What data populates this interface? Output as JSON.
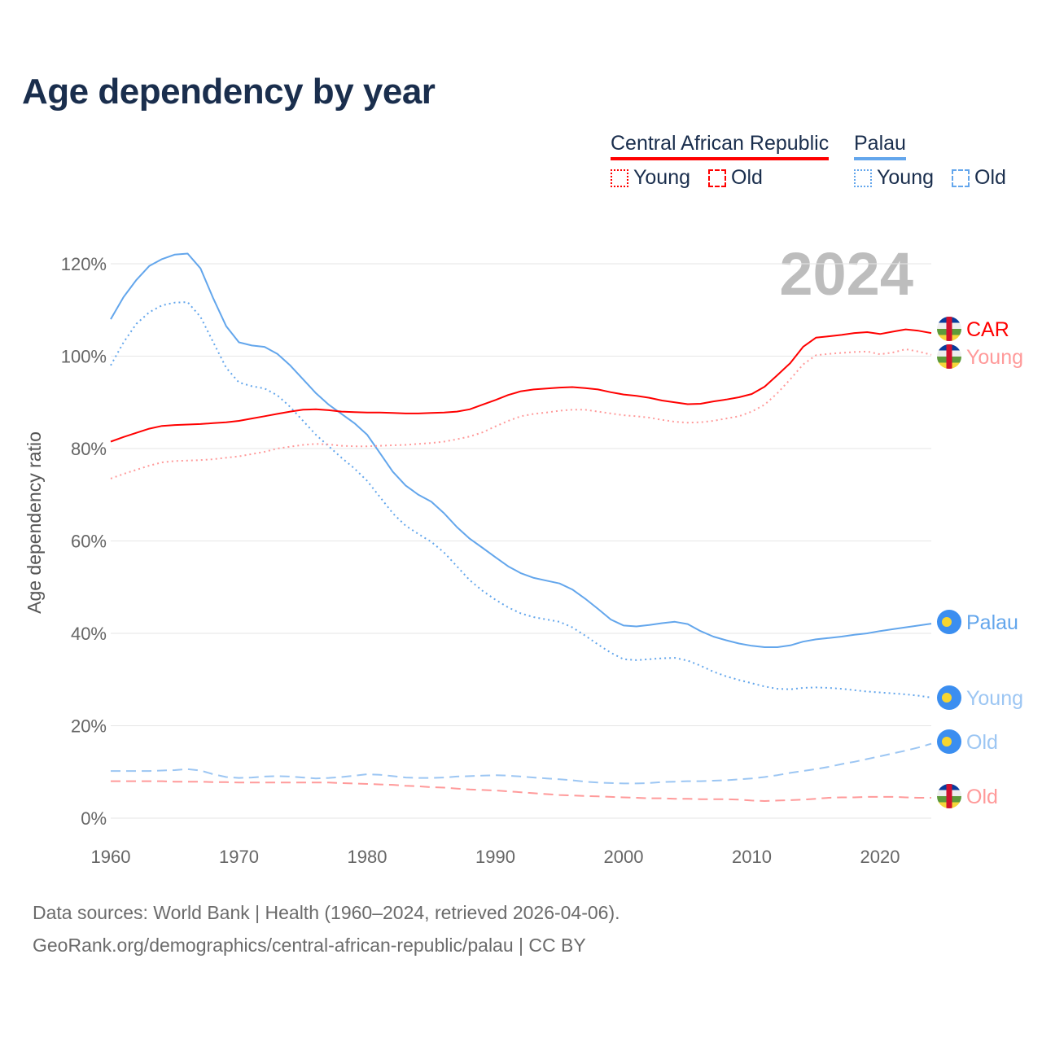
{
  "title": "Age dependency by year",
  "legend": {
    "countries": [
      {
        "name": "Central African Republic",
        "color": "#ff0000"
      },
      {
        "name": "Palau",
        "color": "#63a6ec"
      }
    ],
    "young_label": "Young",
    "old_label": "Old"
  },
  "year_watermark": "2024",
  "footer": {
    "line1": "Data sources: World Bank | Health (1960–2024, retrieved 2026-04-06).",
    "line2": "GeoRank.org/demographics/central-african-republic/palau | CC BY"
  },
  "end_labels": [
    "CAR",
    "Young",
    "Palau",
    "Young",
    "Old",
    "Old"
  ],
  "chart_data": {
    "type": "line",
    "title": "Age dependency by year",
    "xlabel": "",
    "ylabel": "Age dependency ratio",
    "xlim": [
      1960,
      2024
    ],
    "ylim": [
      0,
      120
    ],
    "x_ticks": [
      "1960",
      "1970",
      "1980",
      "1990",
      "2000",
      "2010",
      "2020"
    ],
    "y_ticks": [
      "0%",
      "20%",
      "40%",
      "60%",
      "80%",
      "100%",
      "120%"
    ],
    "grid": true,
    "x_start": 1960,
    "series": [
      {
        "name": "Palau total",
        "label": "Palau",
        "color": "#63a6ec",
        "style": "solid",
        "values": [
          108,
          112.8,
          116.5,
          119.5,
          121,
          122,
          122.2,
          119,
          112.5,
          106.5,
          103,
          102.3,
          102,
          100.5,
          98,
          95,
          92,
          89.5,
          87.5,
          85.5,
          83,
          79,
          75,
          72,
          70,
          68.5,
          66,
          63,
          60.5,
          58.5,
          56.5,
          54.5,
          53,
          52,
          51.4,
          50.8,
          49.5,
          47.5,
          45.3,
          43,
          41.7,
          41.5,
          41.8,
          42.2,
          42.5,
          42,
          40.5,
          39.3,
          38.5,
          37.8,
          37.3,
          37,
          37,
          37.4,
          38.2,
          38.7,
          39,
          39.3,
          39.7,
          40,
          40.5,
          40.9,
          41.3,
          41.7,
          42.1
        ]
      },
      {
        "name": "Palau young",
        "label": "Young",
        "color": "#63a6ec",
        "style": "dotted",
        "values": [
          98,
          103,
          107,
          109.5,
          111,
          111.6,
          111.7,
          108.5,
          103,
          97.5,
          94.3,
          93.5,
          93,
          91.5,
          89,
          86,
          83,
          80.5,
          78,
          75.7,
          73,
          69.5,
          66,
          63.3,
          61.5,
          59.8,
          57.5,
          54.5,
          51.5,
          49.2,
          47.3,
          45.6,
          44.3,
          43.5,
          43,
          42.5,
          41.3,
          39.5,
          37.6,
          35.8,
          34.4,
          34.2,
          34.4,
          34.6,
          34.7,
          34.1,
          33,
          31.7,
          30.7,
          29.9,
          29.2,
          28.5,
          28,
          27.9,
          28.2,
          28.3,
          28.2,
          28,
          27.7,
          27.4,
          27.2,
          27,
          26.8,
          26.5,
          26.1
        ]
      },
      {
        "name": "Palau old",
        "label": "Old",
        "color": "#9cc6f3",
        "style": "dashed",
        "values": [
          10.2,
          10.2,
          10.2,
          10.2,
          10.3,
          10.4,
          10.6,
          10.3,
          9.5,
          8.9,
          8.7,
          8.8,
          9,
          9.1,
          9,
          8.8,
          8.6,
          8.7,
          8.9,
          9.2,
          9.5,
          9.4,
          9.1,
          8.8,
          8.7,
          8.7,
          8.8,
          9,
          9.1,
          9.2,
          9.3,
          9.2,
          9,
          8.8,
          8.6,
          8.4,
          8.2,
          7.9,
          7.7,
          7.6,
          7.5,
          7.5,
          7.6,
          7.8,
          7.9,
          8,
          8,
          8.1,
          8.2,
          8.4,
          8.6,
          8.9,
          9.3,
          9.8,
          10.2,
          10.6,
          11.1,
          11.7,
          12.2,
          12.8,
          13.4,
          14,
          14.6,
          15.3,
          16.1
        ]
      },
      {
        "name": "Central African Republic total",
        "label": "CAR",
        "color": "#ff0000",
        "style": "solid",
        "values": [
          81.5,
          82.5,
          83.4,
          84.3,
          84.9,
          85.1,
          85.2,
          85.3,
          85.5,
          85.7,
          86,
          86.5,
          87,
          87.5,
          88,
          88.4,
          88.5,
          88.3,
          88,
          87.9,
          87.8,
          87.8,
          87.7,
          87.6,
          87.6,
          87.7,
          87.8,
          88,
          88.5,
          89.5,
          90.5,
          91.6,
          92.4,
          92.8,
          93,
          93.2,
          93.3,
          93.1,
          92.8,
          92.2,
          91.7,
          91.4,
          91,
          90.4,
          90,
          89.6,
          89.7,
          90.2,
          90.6,
          91.1,
          91.8,
          93.4,
          95.9,
          98.5,
          102,
          104,
          104.3,
          104.6,
          105,
          105.2,
          104.8,
          105.3,
          105.8,
          105.5,
          105
        ]
      },
      {
        "name": "Central African Republic young",
        "label": "Young",
        "color": "#ff9a9a",
        "style": "dotted",
        "values": [
          73.5,
          74.5,
          75.4,
          76.3,
          77,
          77.3,
          77.4,
          77.5,
          77.7,
          78,
          78.3,
          78.8,
          79.3,
          80,
          80.4,
          80.8,
          81,
          80.9,
          80.6,
          80.5,
          80.5,
          80.6,
          80.7,
          80.8,
          81,
          81.2,
          81.5,
          82,
          82.6,
          83.5,
          84.8,
          86,
          87,
          87.5,
          87.8,
          88.2,
          88.4,
          88.4,
          88,
          87.6,
          87.2,
          87,
          86.7,
          86.2,
          85.8,
          85.6,
          85.7,
          86,
          86.5,
          87,
          88,
          89.5,
          92,
          95,
          98.2,
          100.2,
          100.5,
          100.7,
          100.9,
          101,
          100.4,
          100.8,
          101.5,
          101,
          100.3
        ]
      },
      {
        "name": "Central African Republic old",
        "label": "Old",
        "color": "#ff9a9a",
        "style": "dashed",
        "values": [
          8,
          8,
          8,
          8,
          8,
          7.9,
          7.9,
          7.9,
          7.8,
          7.8,
          7.7,
          7.7,
          7.7,
          7.7,
          7.7,
          7.7,
          7.7,
          7.7,
          7.6,
          7.5,
          7.4,
          7.3,
          7.2,
          7,
          6.9,
          6.7,
          6.6,
          6.4,
          6.2,
          6.1,
          6,
          5.8,
          5.6,
          5.4,
          5.2,
          5,
          4.9,
          4.8,
          4.7,
          4.6,
          4.5,
          4.4,
          4.3,
          4.3,
          4.2,
          4.2,
          4.1,
          4.1,
          4.1,
          4,
          3.8,
          3.7,
          3.8,
          3.9,
          4,
          4.2,
          4.4,
          4.5,
          4.5,
          4.6,
          4.6,
          4.6,
          4.5,
          4.4,
          4.4
        ]
      }
    ]
  }
}
